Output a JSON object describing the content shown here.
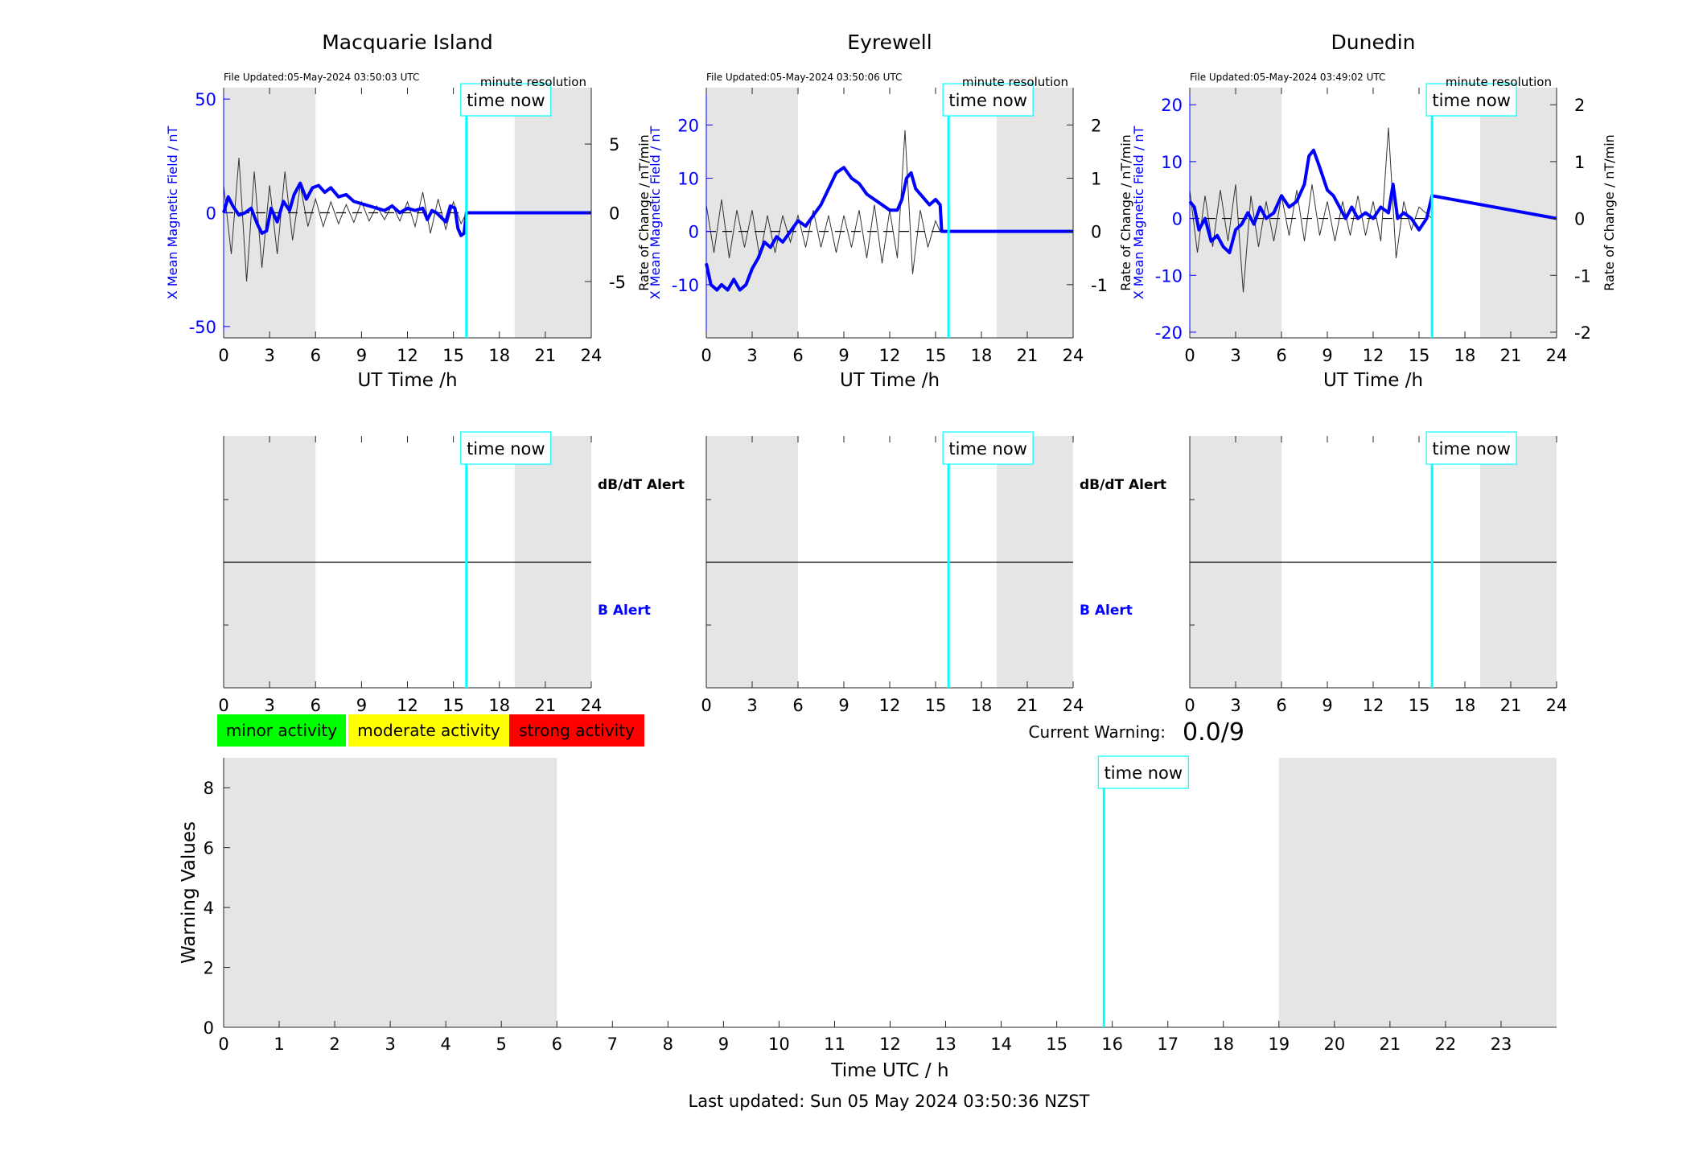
{
  "figure": {
    "current_warning_label": "Current Warning:",
    "current_warning_value": "0.0/9",
    "last_updated": "Last updated: Sun 05 May 2024 03:50:36 NZST",
    "time_now_label": "time now",
    "legend": [
      {
        "label": "minor activity",
        "color": "#00ff00"
      },
      {
        "label": "moderate activity",
        "color": "#ffff00"
      },
      {
        "label": "strong activity",
        "color": "#ff0000"
      }
    ]
  },
  "chart_data": [
    {
      "type": "line",
      "station": "Macquarie Island",
      "title": "Macquarie Island",
      "file_updated": "File Updated:05-May-2024 03:50:03 UTC",
      "resolution": "minute resolution",
      "xlabel": "UT Time /h",
      "ylabel": "X Mean Magnetic Field / nT",
      "ylabel_right": "Rate of Change / nT/min",
      "xlim": [
        0,
        24
      ],
      "xticks": [
        0,
        3,
        6,
        9,
        12,
        15,
        18,
        21,
        24
      ],
      "ylim": [
        -55,
        55
      ],
      "yticks": [
        -50,
        0,
        50
      ],
      "ylim_right": [
        -9.1,
        9.1
      ],
      "yticks_right": [
        -5,
        0,
        5
      ],
      "night_shading": [
        [
          0,
          6
        ],
        [
          19,
          24
        ]
      ],
      "time_now": 15.85,
      "series": [
        {
          "axis": "left",
          "color": "#0000ff",
          "x": [
            0,
            0.3,
            0.6,
            1,
            1.4,
            1.8,
            2.2,
            2.5,
            2.8,
            3.1,
            3.5,
            3.9,
            4.3,
            4.6,
            5,
            5.4,
            5.8,
            6.2,
            6.6,
            7,
            7.5,
            8,
            8.5,
            9,
            9.5,
            10,
            10.5,
            11,
            11.5,
            12,
            12.5,
            13,
            13.3,
            13.6,
            13.9,
            14.2,
            14.5,
            14.8,
            15.1,
            15.3,
            15.5,
            15.7,
            15.85,
            24
          ],
          "y": [
            0,
            7,
            3,
            -1,
            0,
            2,
            -5,
            -9,
            -8,
            2,
            -4,
            5,
            1,
            8,
            13,
            6,
            11,
            12,
            9,
            11,
            7,
            8,
            5,
            4,
            3,
            2,
            1,
            3,
            0,
            2,
            1,
            2,
            -3,
            1,
            0,
            -2,
            -4,
            3,
            2,
            -7,
            -10,
            -9,
            0,
            0
          ]
        },
        {
          "axis": "right",
          "color": "#333333",
          "x": [
            0,
            0.5,
            1,
            1.5,
            2,
            2.5,
            3,
            3.5,
            4,
            4.5,
            5,
            5.5,
            6,
            6.5,
            7,
            7.5,
            8,
            8.5,
            9,
            9.5,
            10,
            10.5,
            11,
            11.5,
            12,
            12.5,
            13,
            13.5,
            14,
            14.5,
            15,
            15.5,
            15.85
          ],
          "y": [
            2,
            -3,
            4,
            -5,
            3,
            -4,
            2,
            -3,
            3,
            -2,
            2,
            -1,
            1,
            -1,
            0.8,
            -0.8,
            0.6,
            -0.7,
            0.8,
            -0.6,
            0.5,
            -0.5,
            0.6,
            -0.6,
            0.8,
            -1,
            1.5,
            -1.5,
            1,
            -1.2,
            0.8,
            -0.8,
            0
          ]
        }
      ]
    },
    {
      "type": "line",
      "station": "Eyrewell",
      "title": "Eyrewell",
      "file_updated": "File Updated:05-May-2024 03:50:06 UTC",
      "resolution": "minute resolution",
      "xlabel": "UT Time /h",
      "ylabel": "X Mean Magnetic Field / nT",
      "ylabel_right": "Rate of Change / nT/min",
      "xlim": [
        0,
        24
      ],
      "xticks": [
        0,
        3,
        6,
        9,
        12,
        15,
        18,
        21,
        24
      ],
      "ylim": [
        -20,
        27
      ],
      "yticks": [
        -10,
        0,
        10,
        20
      ],
      "ylim_right": [
        -2,
        2.7
      ],
      "yticks_right": [
        -1,
        0,
        1,
        2
      ],
      "night_shading": [
        [
          0,
          6
        ],
        [
          19,
          24
        ]
      ],
      "time_now": 15.85,
      "series": [
        {
          "axis": "left",
          "color": "#0000ff",
          "x": [
            0,
            0.3,
            0.7,
            1,
            1.4,
            1.8,
            2.2,
            2.6,
            3,
            3.4,
            3.8,
            4.2,
            4.6,
            5,
            5.5,
            6,
            6.5,
            7,
            7.5,
            8,
            8.5,
            9,
            9.5,
            10,
            10.5,
            11,
            11.5,
            12,
            12.5,
            12.8,
            13.1,
            13.4,
            13.7,
            14,
            14.3,
            14.6,
            15,
            15.3,
            15.4,
            15.85,
            24
          ],
          "y": [
            -6,
            -10,
            -11,
            -10,
            -11,
            -9,
            -11,
            -10,
            -7,
            -5,
            -2,
            -3,
            -1,
            -2,
            0,
            2,
            1,
            3,
            5,
            8,
            11,
            12,
            10,
            9,
            7,
            6,
            5,
            4,
            4,
            6,
            10,
            11,
            8,
            7,
            6,
            5,
            6,
            5,
            0,
            0,
            0
          ]
        },
        {
          "axis": "right",
          "color": "#333333",
          "x": [
            0,
            0.5,
            1,
            1.5,
            2,
            2.5,
            3,
            3.5,
            4,
            4.5,
            5,
            5.5,
            6,
            6.5,
            7,
            7.5,
            8,
            8.5,
            9,
            9.5,
            10,
            10.5,
            11,
            11.5,
            12,
            12.5,
            13,
            13.5,
            14,
            14.5,
            15,
            15.3
          ],
          "y": [
            0.5,
            -0.4,
            0.6,
            -0.5,
            0.4,
            -0.3,
            0.4,
            -0.5,
            0.3,
            -0.4,
            0.3,
            -0.2,
            0.3,
            -0.3,
            0.4,
            -0.3,
            0.3,
            -0.4,
            0.3,
            -0.3,
            0.4,
            -0.5,
            0.5,
            -0.6,
            0.4,
            -0.5,
            1.9,
            -0.8,
            0.4,
            -0.3,
            0.2,
            0
          ]
        }
      ]
    },
    {
      "type": "line",
      "station": "Dunedin",
      "title": "Dunedin",
      "file_updated": "File Updated:05-May-2024 03:49:02 UTC",
      "resolution": "minute resolution",
      "xlabel": "UT Time /h",
      "ylabel": "X Mean Magnetic Field / nT",
      "ylabel_right": "Rate of Change / nT/min",
      "xlim": [
        0,
        24
      ],
      "xticks": [
        0,
        3,
        6,
        9,
        12,
        15,
        18,
        21,
        24
      ],
      "ylim": [
        -21,
        23
      ],
      "yticks": [
        -20,
        -10,
        0,
        10,
        20
      ],
      "ylim_right": [
        -2.1,
        2.3
      ],
      "yticks_right": [
        -2,
        -1,
        0,
        1,
        2
      ],
      "night_shading": [
        [
          0,
          6
        ],
        [
          19,
          24
        ]
      ],
      "time_now": 15.85,
      "series": [
        {
          "axis": "left",
          "color": "#0000ff",
          "x": [
            0,
            0.3,
            0.6,
            1,
            1.4,
            1.8,
            2.2,
            2.6,
            3,
            3.4,
            3.8,
            4.2,
            4.6,
            5,
            5.5,
            6,
            6.5,
            7,
            7.5,
            7.8,
            8.1,
            8.5,
            9,
            9.4,
            9.8,
            10.2,
            10.6,
            11,
            11.5,
            12,
            12.5,
            13,
            13.3,
            13.6,
            14,
            14.5,
            15,
            15.5,
            15.85,
            24
          ],
          "y": [
            3,
            2,
            -2,
            0,
            -4,
            -3,
            -5,
            -6,
            -2,
            -1,
            1,
            -1,
            2,
            0,
            1,
            4,
            2,
            3,
            6,
            11,
            12,
            9,
            5,
            4,
            2,
            0,
            2,
            0,
            1,
            0,
            2,
            1,
            6,
            0,
            1,
            0,
            -2,
            0,
            4,
            0
          ]
        },
        {
          "axis": "right",
          "color": "#333333",
          "x": [
            0,
            0.5,
            1,
            1.5,
            2,
            2.5,
            3,
            3.5,
            4,
            4.5,
            5,
            5.5,
            6,
            6.5,
            7,
            7.5,
            8,
            8.5,
            9,
            9.5,
            10,
            10.5,
            11,
            11.5,
            12,
            12.5,
            13,
            13.5,
            14,
            14.5,
            15,
            15.85
          ],
          "y": [
            0.5,
            -0.6,
            0.4,
            -0.5,
            0.5,
            -0.4,
            0.6,
            -1.3,
            0.4,
            -0.5,
            0.3,
            -0.4,
            0.4,
            -0.3,
            0.5,
            -0.4,
            0.6,
            -0.3,
            0.3,
            -0.4,
            0.3,
            -0.3,
            0.4,
            -0.3,
            0.3,
            -0.4,
            1.6,
            -0.7,
            0.3,
            -0.2,
            0.2,
            0
          ]
        }
      ]
    },
    {
      "type": "line",
      "station": "Macquarie Island",
      "alert_labels": [
        "dB/dT Alert",
        "B Alert"
      ],
      "xlim": [
        0,
        24
      ],
      "xticks": [
        0,
        3,
        6,
        9,
        12,
        15,
        18,
        21,
        24
      ],
      "night_shading": [
        [
          0,
          6
        ],
        [
          19,
          24
        ]
      ],
      "time_now": 15.85
    },
    {
      "type": "line",
      "station": "Eyrewell",
      "alert_labels": [
        "dB/dT Alert",
        "B Alert"
      ],
      "xlim": [
        0,
        24
      ],
      "xticks": [
        0,
        3,
        6,
        9,
        12,
        15,
        18,
        21,
        24
      ],
      "night_shading": [
        [
          0,
          6
        ],
        [
          19,
          24
        ]
      ],
      "time_now": 15.85
    },
    {
      "type": "line",
      "station": "Dunedin",
      "alert_labels": [],
      "xlim": [
        0,
        24
      ],
      "xticks": [
        0,
        3,
        6,
        9,
        12,
        15,
        18,
        21,
        24
      ],
      "night_shading": [
        [
          0,
          6
        ],
        [
          19,
          24
        ]
      ],
      "time_now": 15.85
    },
    {
      "type": "bar",
      "xlabel": "Time UTC / h",
      "ylabel": "Warning Values",
      "xlim": [
        0,
        24
      ],
      "xticks": [
        0,
        1,
        2,
        3,
        4,
        5,
        6,
        7,
        8,
        9,
        10,
        11,
        12,
        13,
        14,
        15,
        16,
        17,
        18,
        19,
        20,
        21,
        22,
        23
      ],
      "ylim": [
        0,
        9
      ],
      "yticks": [
        0,
        2,
        4,
        6,
        8
      ],
      "night_shading": [
        [
          0,
          6
        ],
        [
          19,
          24
        ]
      ],
      "time_now": 15.85,
      "values": []
    }
  ]
}
